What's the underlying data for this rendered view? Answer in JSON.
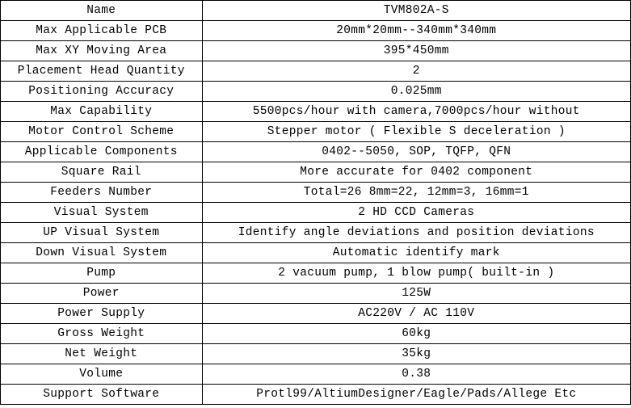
{
  "spec_table": {
    "type": "table",
    "font_family": "Courier New",
    "font_size_pt": 11,
    "border_color": "#000000",
    "background_color": "#ffffff",
    "text_color": "#000000",
    "column_widths_pct": [
      32,
      68
    ],
    "alignment": [
      "center",
      "center"
    ],
    "rows": [
      {
        "label": "Name",
        "value": "TVM802A-S"
      },
      {
        "label": "Max Applicable PCB",
        "value": "20mm*20mm--340mm*340mm"
      },
      {
        "label": "Max XY Moving Area",
        "value": "395*450mm"
      },
      {
        "label": "Placement Head Quantity",
        "value": "2"
      },
      {
        "label": "Positioning Accuracy",
        "value": "0.025mm"
      },
      {
        "label": "Max Capability",
        "value": "5500pcs/hour with camera,7000pcs/hour without"
      },
      {
        "label": "Motor Control Scheme",
        "value": "Stepper motor ( Flexible S deceleration )"
      },
      {
        "label": "Applicable Components",
        "value": "0402--5050, SOP, TQFP, QFN"
      },
      {
        "label": "Square Rail",
        "value": "More accurate for 0402 component"
      },
      {
        "label": "Feeders Number",
        "value": "Total=26  8mm=22, 12mm=3, 16mm=1"
      },
      {
        "label": "Visual System",
        "value": "2 HD CCD Cameras"
      },
      {
        "label": "UP Visual System",
        "value": "Identify angle deviations and position deviations"
      },
      {
        "label": "Down Visual System",
        "value": "Automatic identify mark"
      },
      {
        "label": "Pump",
        "value": "2 vacuum pump, 1 blow pump( built-in )"
      },
      {
        "label": "Power",
        "value": "125W"
      },
      {
        "label": "Power Supply",
        "value": "AC220V / AC 110V"
      },
      {
        "label": "Gross Weight",
        "value": "60kg"
      },
      {
        "label": "Net Weight",
        "value": "35kg"
      },
      {
        "label": "Volume",
        "value": "0.38"
      },
      {
        "label": "Support Software",
        "value": "Protl99/AltiumDesigner/Eagle/Pads/Allege Etc"
      }
    ]
  }
}
